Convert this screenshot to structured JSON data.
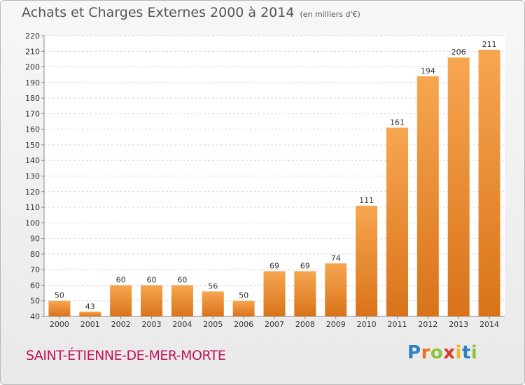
{
  "header": {
    "title": "Achats et Charges Externes 2000 à 2014",
    "unit": "(en milliers d'€)"
  },
  "footer": {
    "commune": "SAINT-ÉTIENNE-DE-MER-MORTE",
    "brand_letters": [
      {
        "char": "P",
        "color": "#2f7fc4"
      },
      {
        "char": "r",
        "color": "#e8731a"
      },
      {
        "char": "o",
        "color": "#8cc43c"
      },
      {
        "char": "x",
        "color": "#d63a2a"
      },
      {
        "char": "i",
        "color": "#f0b81c"
      },
      {
        "char": "t",
        "color": "#2f7fc4"
      },
      {
        "char": "i",
        "color": "#8cc43c"
      }
    ]
  },
  "chart_data": {
    "type": "bar",
    "title": "Achats et Charges Externes 2000 à 2014",
    "subtitle": "(en milliers d'€)",
    "categories": [
      "2000",
      "2001",
      "2002",
      "2003",
      "2004",
      "2005",
      "2006",
      "2007",
      "2008",
      "2009",
      "2010",
      "2011",
      "2012",
      "2013",
      "2014"
    ],
    "values": [
      50,
      43,
      60,
      60,
      60,
      56,
      50,
      69,
      69,
      74,
      111,
      161,
      194,
      206,
      211
    ],
    "ylim": [
      40,
      220
    ],
    "ytick_step": 10,
    "xlabel": "",
    "ylabel": "",
    "grid": true,
    "colors": {
      "bar_top": "#f7a650",
      "bar_bottom": "#d9731a",
      "grid": "#d4d4d4",
      "axis": "#888888"
    }
  }
}
